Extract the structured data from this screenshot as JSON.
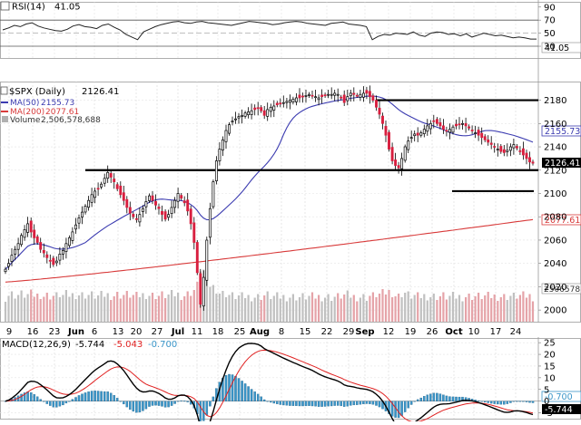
{
  "rsi": {
    "label": "RSI(14)",
    "value": "41.05",
    "ticks": [
      "90",
      "70",
      "50",
      "30"
    ],
    "upper_band": 70,
    "lower_band": 30,
    "ylim": [
      12,
      98
    ],
    "values": [
      55,
      58,
      62,
      60,
      64,
      66,
      61,
      58,
      56,
      54,
      53,
      56,
      61,
      63,
      60,
      59,
      57,
      62,
      64,
      59,
      55,
      48,
      44,
      40,
      52,
      56,
      60,
      63,
      65,
      67,
      68,
      66,
      65,
      67,
      68,
      66,
      65,
      64,
      63,
      62,
      64,
      66,
      68,
      67,
      66,
      65,
      63,
      64,
      66,
      67,
      68,
      67,
      65,
      64,
      63,
      62,
      65,
      66,
      67,
      64,
      63,
      62,
      60,
      40,
      45,
      48,
      47,
      50,
      49,
      48,
      52,
      47,
      45,
      50,
      52,
      51,
      48,
      49,
      46,
      49,
      44,
      47,
      50,
      48,
      46,
      47,
      45,
      43,
      44,
      43,
      41,
      41
    ]
  },
  "price_panel": {
    "title": "$SPX (Daily)",
    "last_price": "2126.41",
    "ma50_label": "MA(50)",
    "ma50_value": "2155.73",
    "ma200_label": "MA(200)",
    "ma200_value": "2077.61",
    "volume_label": "Volume",
    "volume_value": "2,506,578,688",
    "volume_badge": "2506578",
    "y_ticks": [
      "2180",
      "2160",
      "2140",
      "2120",
      "2100",
      "2080",
      "2060",
      "2040",
      "2020",
      "2000"
    ]
  },
  "x_axis": {
    "ticks": [
      "9",
      "16",
      "23",
      "Jun",
      "6",
      "13",
      "20",
      "27",
      "Jul",
      "11",
      "18",
      "25",
      "Aug",
      "8",
      "15",
      "22",
      "29",
      "Sep",
      "12",
      "19",
      "26",
      "Oct",
      "10",
      "17",
      "24"
    ]
  },
  "macd": {
    "label": "MACD(12,26,9)",
    "macd_value": "-5.744",
    "signal_value": "-5.043",
    "hist_value": "-0.700",
    "ticks": [
      "25",
      "20",
      "15",
      "10",
      "5",
      "0",
      "-5"
    ],
    "ylim": [
      -7.5,
      27
    ]
  },
  "colors": {
    "ma50": "#3b3bb0",
    "ma200": "#d83a3a",
    "up_candle": "#ffffff",
    "down_candle": "#d81e3e",
    "volume_up": "#c0c0c0",
    "volume_down": "#e5a3a8",
    "macd_line": "#000000",
    "signal_line": "#e02020",
    "histogram": "#3a95c8"
  },
  "chart_data": [
    {
      "type": "line",
      "title": "RSI(14)",
      "x_ticks": [
        "9",
        "16",
        "23",
        "Jun",
        "6",
        "13",
        "20",
        "27",
        "Jul",
        "11",
        "18",
        "25",
        "Aug",
        "8",
        "15",
        "22",
        "29",
        "Sep",
        "12",
        "19",
        "26",
        "Oct",
        "10",
        "17",
        "24"
      ],
      "ylim": [
        12,
        98
      ],
      "y_ticks": [
        90,
        70,
        50,
        30
      ],
      "reference_lines": [
        70,
        30
      ],
      "last_value": 41.05
    },
    {
      "type": "candlestick",
      "title": "$SPX (Daily)",
      "ylim": [
        1990,
        2196
      ],
      "y_ticks": [
        2180,
        2160,
        2140,
        2120,
        2100,
        2080,
        2060,
        2040,
        2020,
        2000
      ],
      "last_value": 2126.41,
      "series": [
        {
          "name": "MA(50)",
          "last_value": 2155.73
        },
        {
          "name": "MA(200)",
          "last_value": 2077.61
        },
        {
          "name": "Volume",
          "last_value": 2506578688
        }
      ],
      "horizontal_levels": [
        2120,
        2180,
        2102
      ],
      "closes": [
        2035,
        2040,
        2047,
        2052,
        2057,
        2064,
        2069,
        2074,
        2067,
        2062,
        2058,
        2052,
        2049,
        2045,
        2042,
        2039,
        2042,
        2048,
        2051,
        2057,
        2062,
        2067,
        2073,
        2079,
        2084,
        2089,
        2094,
        2099,
        2102,
        2104,
        2108,
        2113,
        2118,
        2114,
        2110,
        2104,
        2099,
        2094,
        2088,
        2083,
        2080,
        2078,
        2082,
        2087,
        2093,
        2098,
        2094,
        2090,
        2087,
        2082,
        2078,
        2082,
        2088,
        2094,
        2100,
        2096,
        2092,
        2085,
        2074,
        2058,
        2032,
        2005,
        2028,
        2060,
        2087,
        2110,
        2128,
        2138,
        2146,
        2154,
        2159,
        2162,
        2164,
        2166,
        2167,
        2169,
        2170,
        2171,
        2172,
        2173,
        2171,
        2167,
        2172,
        2174,
        2175,
        2176,
        2177,
        2178,
        2179,
        2180,
        2181,
        2182,
        2182,
        2183,
        2184,
        2185,
        2184,
        2183,
        2182,
        2183,
        2184,
        2185,
        2185,
        2186,
        2185,
        2182,
        2178,
        2183,
        2186,
        2185,
        2184,
        2185,
        2186,
        2186,
        2183,
        2180,
        2174,
        2168,
        2160,
        2150,
        2138,
        2128,
        2124,
        2122,
        2130,
        2140,
        2145,
        2148,
        2151,
        2150,
        2152,
        2155,
        2158,
        2160,
        2162,
        2160,
        2158,
        2155,
        2154,
        2155,
        2157,
        2158,
        2159,
        2160,
        2158,
        2156,
        2154,
        2152,
        2150,
        2148,
        2146,
        2144,
        2142,
        2140,
        2138,
        2136,
        2135,
        2137,
        2140,
        2142,
        2139,
        2136,
        2133,
        2130,
        2127,
        2126
      ]
    },
    {
      "type": "line",
      "title": "MACD(12,26,9)",
      "ylim": [
        -7.5,
        27
      ],
      "y_ticks": [
        25,
        20,
        15,
        10,
        5,
        0,
        -5
      ],
      "series": [
        {
          "name": "MACD",
          "last_value": -5.744
        },
        {
          "name": "Signal",
          "last_value": -5.043
        },
        {
          "name": "Histogram",
          "last_value": -0.7
        }
      ]
    }
  ]
}
